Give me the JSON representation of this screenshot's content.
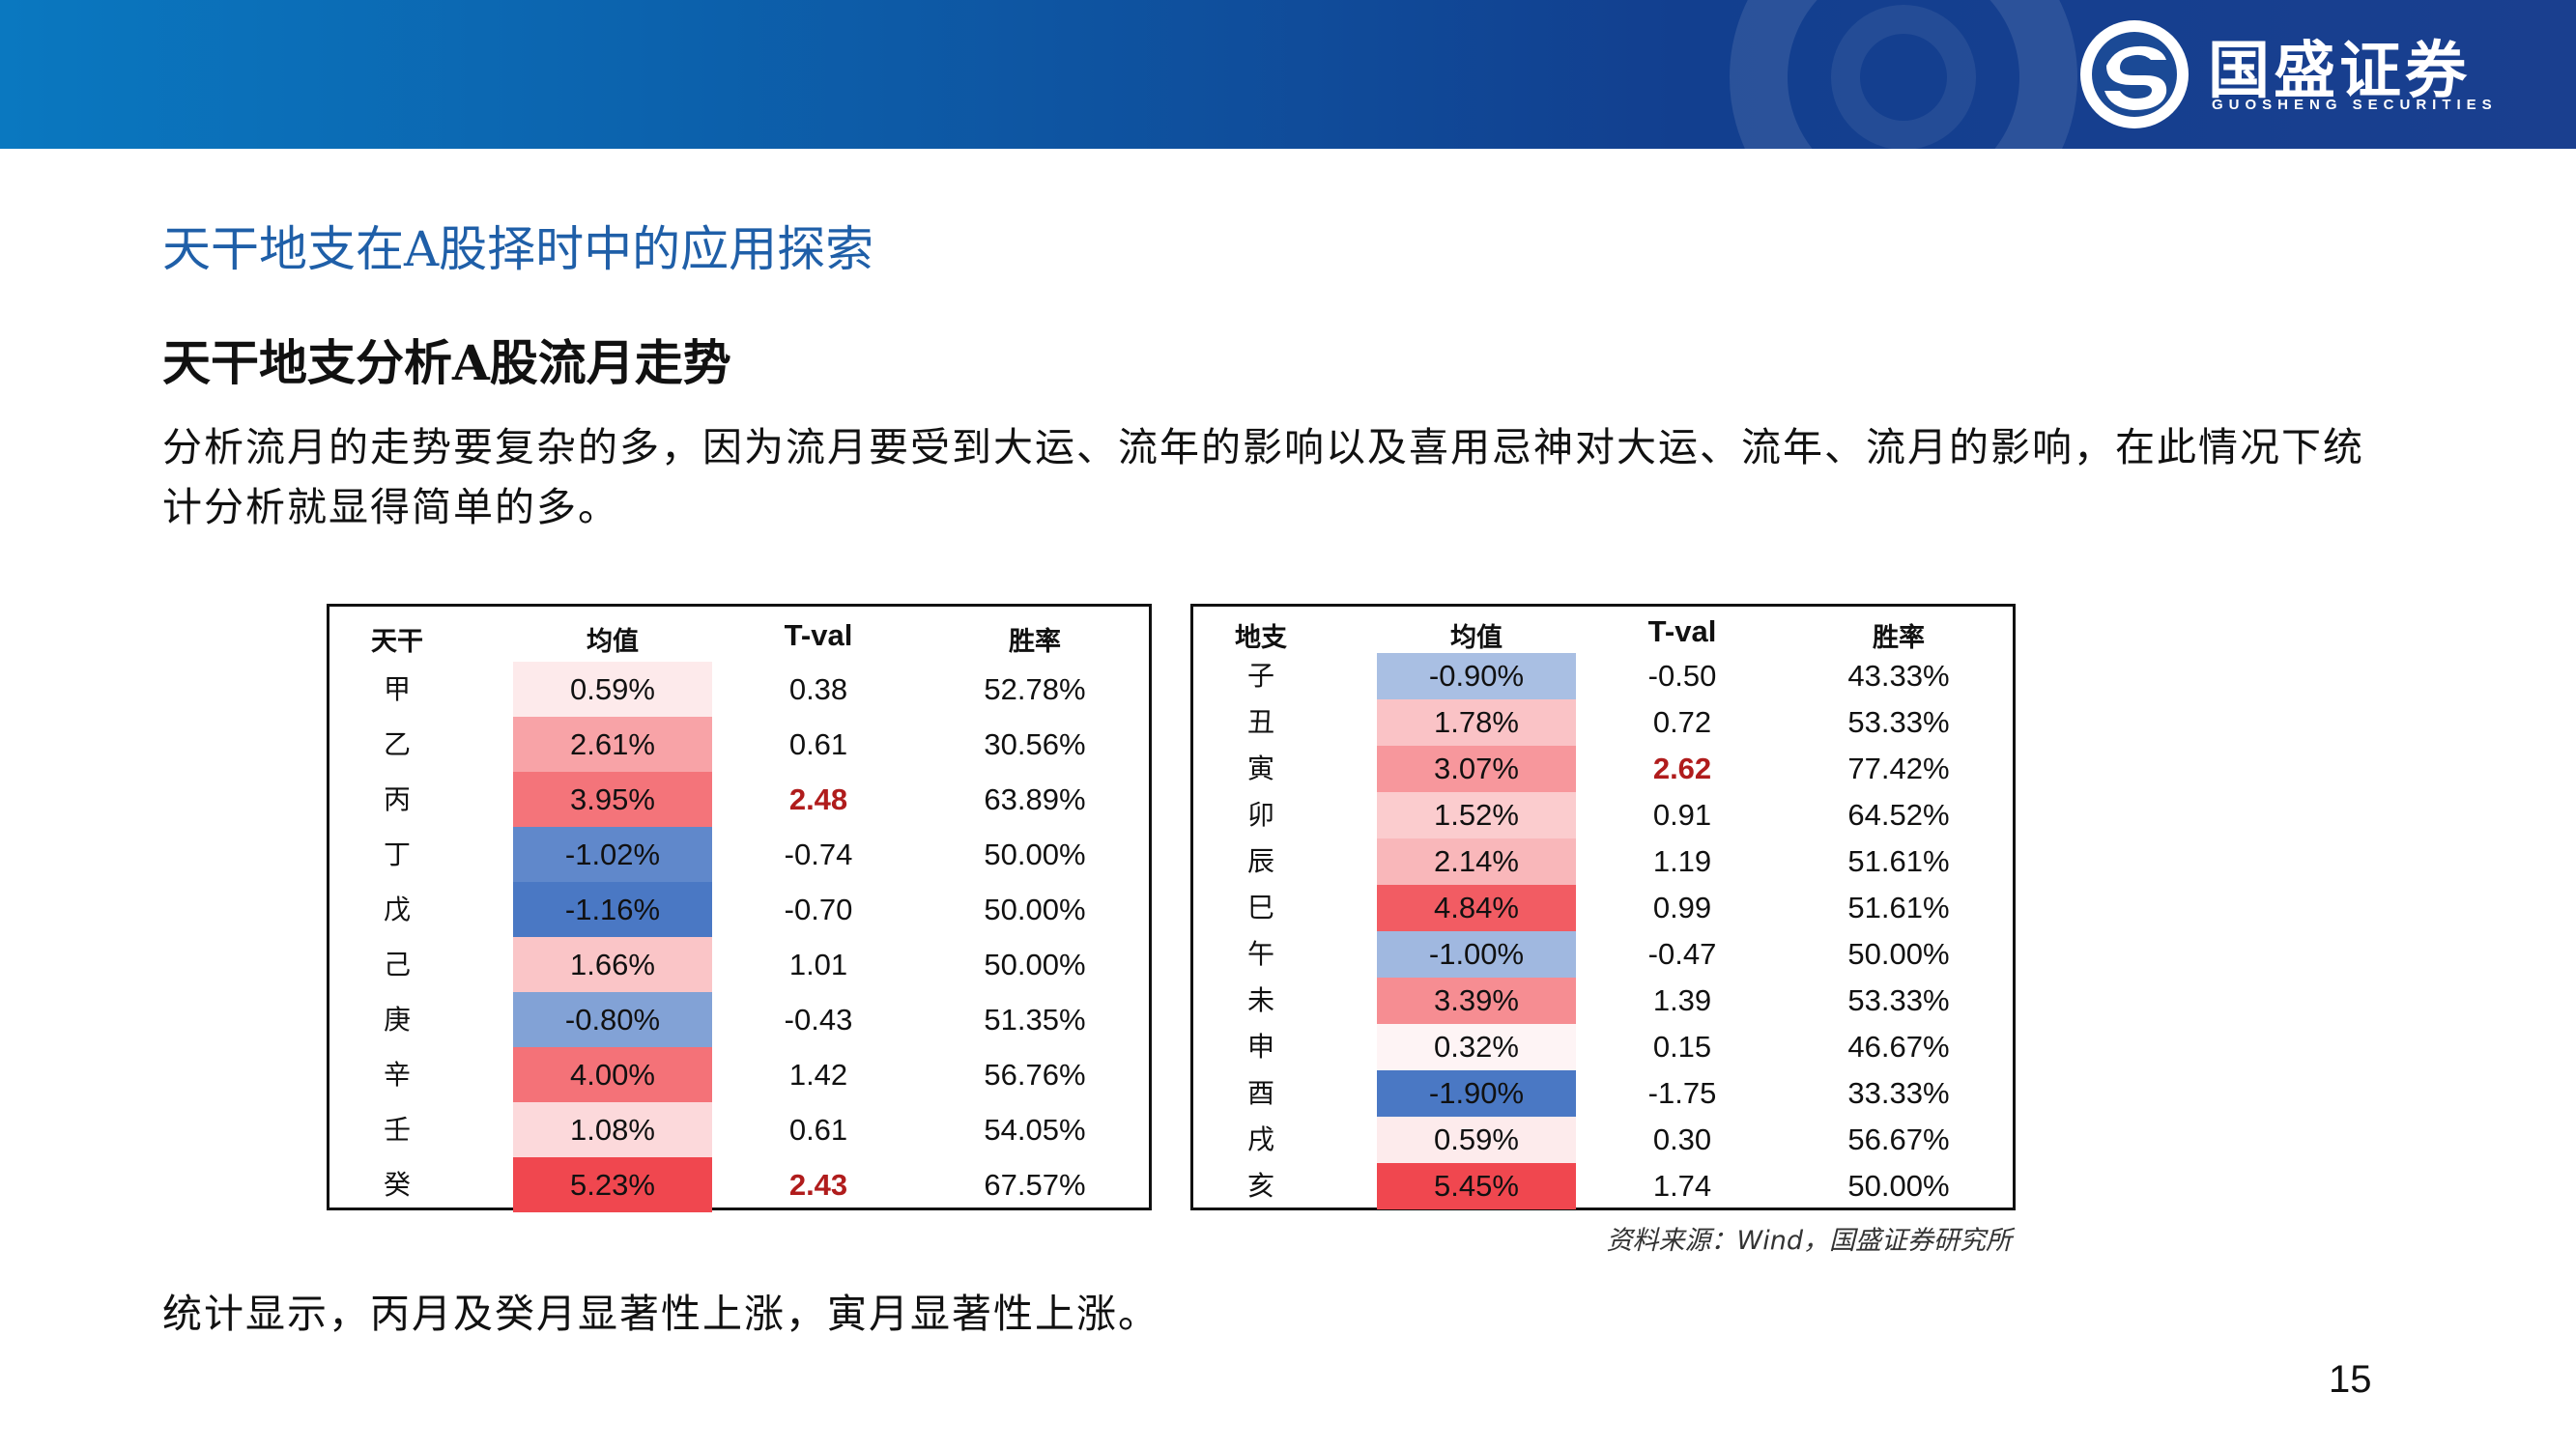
{
  "header": {
    "brand_cn": "国盛证券",
    "brand_en": "GUOSHENG SECURITIES",
    "bar_color_start": "#0a78c0",
    "bar_color_end": "#1a3f8f"
  },
  "section_title": "天干地支在A股择时中的应用探索",
  "sub_title": "天干地支分析A股流月走势",
  "body_text": "分析流月的走势要复杂的多，因为流月要受到大运、流年的影响以及喜用忌神对大运、流年、流月的影响，在此情况下统计分析就显得简单的多。",
  "table_tiangan": {
    "headers": [
      "天干",
      "均值",
      "T-val",
      "胜率"
    ],
    "rows": [
      {
        "label": "甲",
        "mean": "0.59%",
        "mean_value": 0.59,
        "tval": "0.38",
        "significant": false,
        "win": "52.78%"
      },
      {
        "label": "乙",
        "mean": "2.61%",
        "mean_value": 2.61,
        "tval": "0.61",
        "significant": false,
        "win": "30.56%"
      },
      {
        "label": "丙",
        "mean": "3.95%",
        "mean_value": 3.95,
        "tval": "2.48",
        "significant": true,
        "win": "63.89%"
      },
      {
        "label": "丁",
        "mean": "-1.02%",
        "mean_value": -1.02,
        "tval": "-0.74",
        "significant": false,
        "win": "50.00%"
      },
      {
        "label": "戊",
        "mean": "-1.16%",
        "mean_value": -1.16,
        "tval": "-0.70",
        "significant": false,
        "win": "50.00%"
      },
      {
        "label": "己",
        "mean": "1.66%",
        "mean_value": 1.66,
        "tval": "1.01",
        "significant": false,
        "win": "50.00%"
      },
      {
        "label": "庚",
        "mean": "-0.80%",
        "mean_value": -0.8,
        "tval": "-0.43",
        "significant": false,
        "win": "51.35%"
      },
      {
        "label": "辛",
        "mean": "4.00%",
        "mean_value": 4.0,
        "tval": "1.42",
        "significant": false,
        "win": "56.76%"
      },
      {
        "label": "壬",
        "mean": "1.08%",
        "mean_value": 1.08,
        "tval": "0.61",
        "significant": false,
        "win": "54.05%"
      },
      {
        "label": "癸",
        "mean": "5.23%",
        "mean_value": 5.23,
        "tval": "2.43",
        "significant": true,
        "win": "67.57%"
      }
    ]
  },
  "table_dizhi": {
    "headers": [
      "地支",
      "均值",
      "T-val",
      "胜率"
    ],
    "rows": [
      {
        "label": "子",
        "mean": "-0.90%",
        "mean_value": -0.9,
        "tval": "-0.50",
        "significant": false,
        "win": "43.33%"
      },
      {
        "label": "丑",
        "mean": "1.78%",
        "mean_value": 1.78,
        "tval": "0.72",
        "significant": false,
        "win": "53.33%"
      },
      {
        "label": "寅",
        "mean": "3.07%",
        "mean_value": 3.07,
        "tval": "2.62",
        "significant": true,
        "win": "77.42%"
      },
      {
        "label": "卯",
        "mean": "1.52%",
        "mean_value": 1.52,
        "tval": "0.91",
        "significant": false,
        "win": "64.52%"
      },
      {
        "label": "辰",
        "mean": "2.14%",
        "mean_value": 2.14,
        "tval": "1.19",
        "significant": false,
        "win": "51.61%"
      },
      {
        "label": "巳",
        "mean": "4.84%",
        "mean_value": 4.84,
        "tval": "0.99",
        "significant": false,
        "win": "51.61%"
      },
      {
        "label": "午",
        "mean": "-1.00%",
        "mean_value": -1.0,
        "tval": "-0.47",
        "significant": false,
        "win": "50.00%"
      },
      {
        "label": "未",
        "mean": "3.39%",
        "mean_value": 3.39,
        "tval": "1.39",
        "significant": false,
        "win": "53.33%"
      },
      {
        "label": "申",
        "mean": "0.32%",
        "mean_value": 0.32,
        "tval": "0.15",
        "significant": false,
        "win": "46.67%"
      },
      {
        "label": "酉",
        "mean": "-1.90%",
        "mean_value": -1.9,
        "tval": "-1.75",
        "significant": false,
        "win": "33.33%"
      },
      {
        "label": "戌",
        "mean": "0.59%",
        "mean_value": 0.59,
        "tval": "0.30",
        "significant": false,
        "win": "56.67%"
      },
      {
        "label": "亥",
        "mean": "5.45%",
        "mean_value": 5.45,
        "tval": "1.74",
        "significant": false,
        "win": "50.00%"
      }
    ]
  },
  "colors": {
    "positive_max": "#f0474f",
    "negative_max": "#4a78c4",
    "neutral": "#ffffff",
    "significant_text": "#b01c1c",
    "title_blue": "#1f5fa8"
  },
  "source_note": "资料来源：Wind，国盛证券研究所",
  "conclusion": "统计显示，丙月及癸月显著性上涨，寅月显著性上涨。",
  "page_number": "15"
}
